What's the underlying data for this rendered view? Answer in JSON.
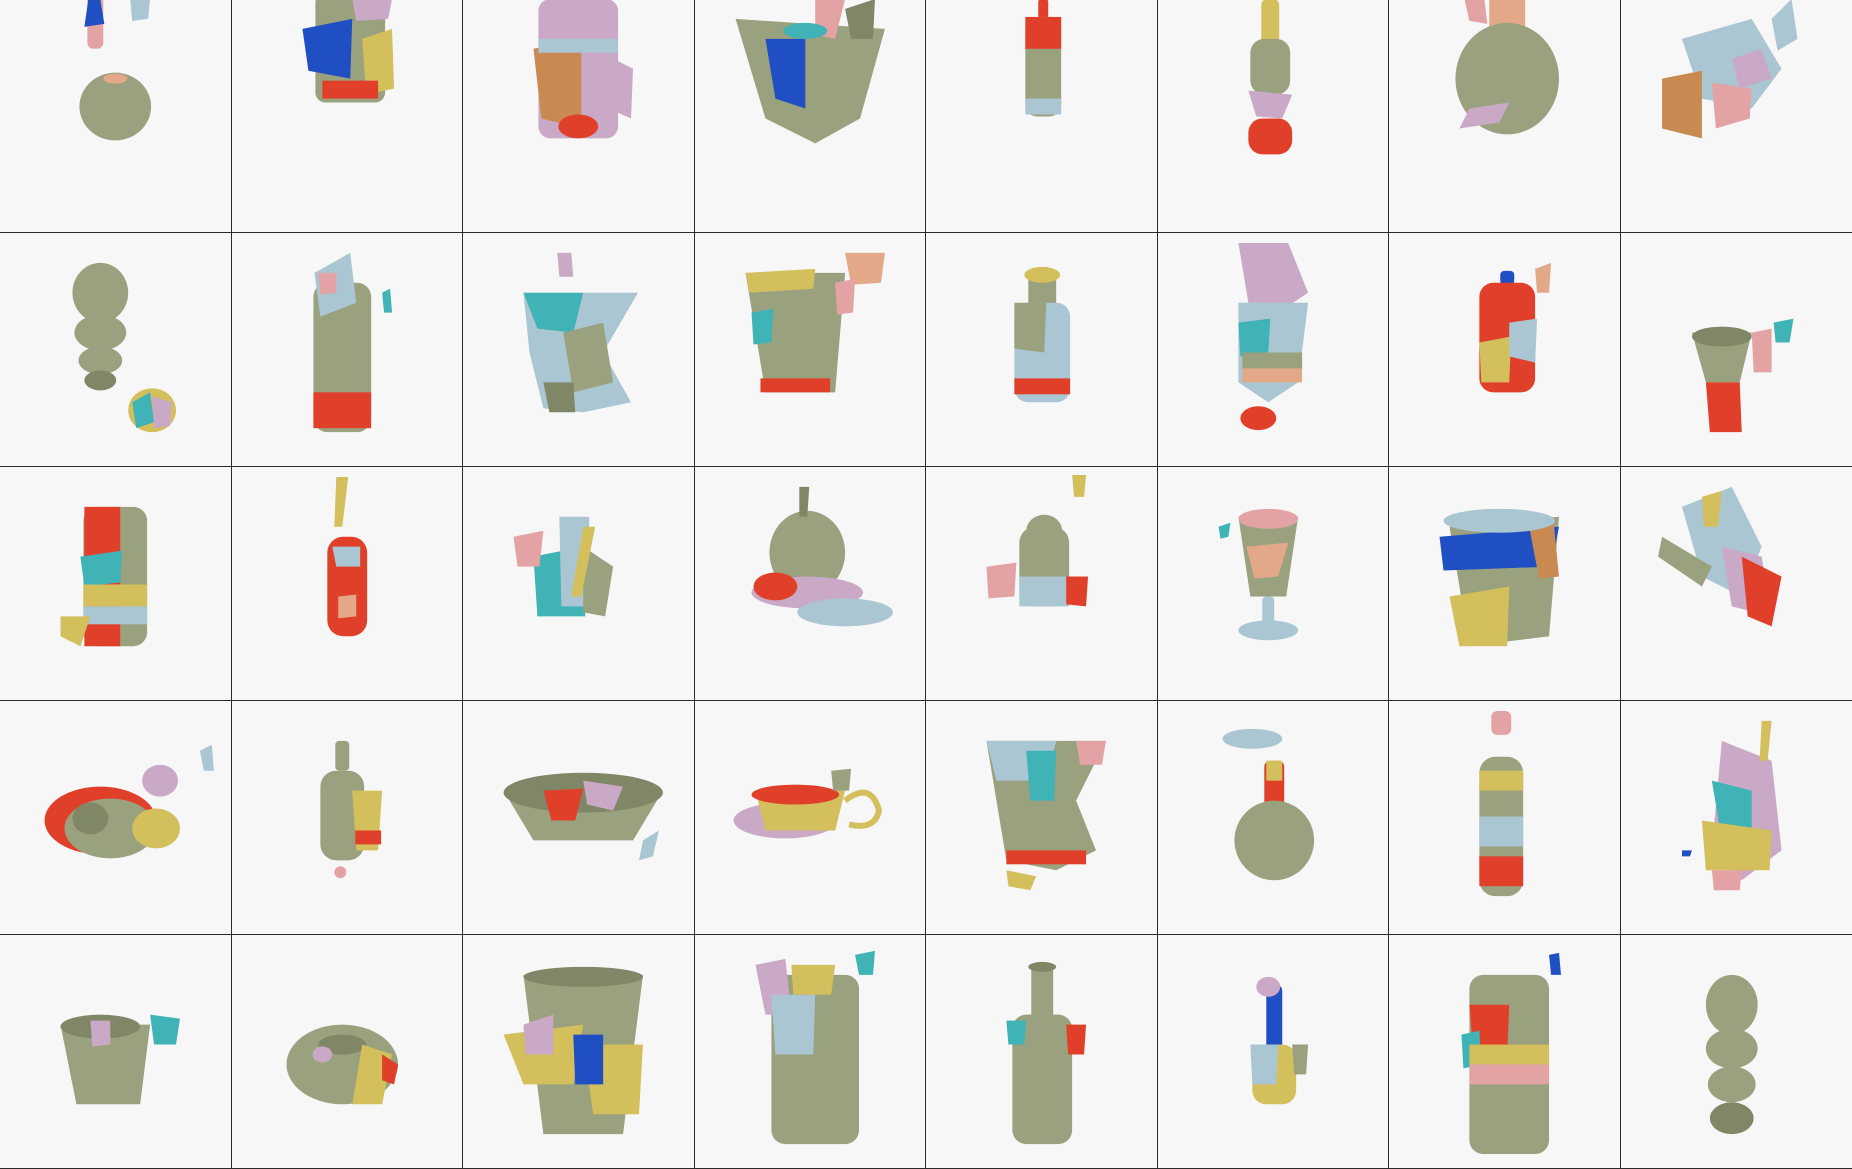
{
  "image": {
    "description_rows": 5,
    "description_cols": 8
  },
  "palette": {
    "sage": "#9aa17f",
    "sage_dark": "#7f8766",
    "red": "#e0402a",
    "blue": "#1f4fc2",
    "teal": "#3fb3b5",
    "lavender": "#c9a9c6",
    "pink": "#e3a3a5",
    "mustard": "#d3bf5b",
    "lightblue": "#aac6d2",
    "orange": "#c98a52",
    "peach": "#e2a888",
    "border": "#2a2a2a",
    "background": "#f7f7f7"
  },
  "cells": [
    {
      "shape": "scattered-ball"
    },
    {
      "shape": "cup-blue"
    },
    {
      "shape": "mug-orange"
    },
    {
      "shape": "vase-wide-blue"
    },
    {
      "shape": "bottle-slim-red"
    },
    {
      "shape": "bottle-long"
    },
    {
      "shape": "flask-round"
    },
    {
      "shape": "broken-vase"
    },
    {
      "shape": "stacked-gourd"
    },
    {
      "shape": "cylinder-vase"
    },
    {
      "shape": "vase-hourglass"
    },
    {
      "shape": "cup-wide"
    },
    {
      "shape": "bottle-wine"
    },
    {
      "shape": "tall-vase-broken"
    },
    {
      "shape": "bottle-blue-cap"
    },
    {
      "shape": "goblet-small"
    },
    {
      "shape": "cylinder-red"
    },
    {
      "shape": "bottle-red-small"
    },
    {
      "shape": "box-teal"
    },
    {
      "shape": "sphere-spout"
    },
    {
      "shape": "small-jar"
    },
    {
      "shape": "goblet-pink"
    },
    {
      "shape": "pot-blue-band"
    },
    {
      "shape": "shard-spread"
    },
    {
      "shape": "bowl-pile"
    },
    {
      "shape": "bottle-and-cup"
    },
    {
      "shape": "bowl-wide"
    },
    {
      "shape": "teapot-low"
    },
    {
      "shape": "vase-wide-teal"
    },
    {
      "shape": "flask-red-neck"
    },
    {
      "shape": "bottle-tall-striped"
    },
    {
      "shape": "shard-tower"
    },
    {
      "shape": "cup-small"
    },
    {
      "shape": "teapot-dome"
    },
    {
      "shape": "bucket-broken"
    },
    {
      "shape": "cylinder-tall"
    },
    {
      "shape": "bottle-neck"
    },
    {
      "shape": "small-figure"
    },
    {
      "shape": "cylinder-broken"
    },
    {
      "shape": "gourd-tall"
    }
  ]
}
